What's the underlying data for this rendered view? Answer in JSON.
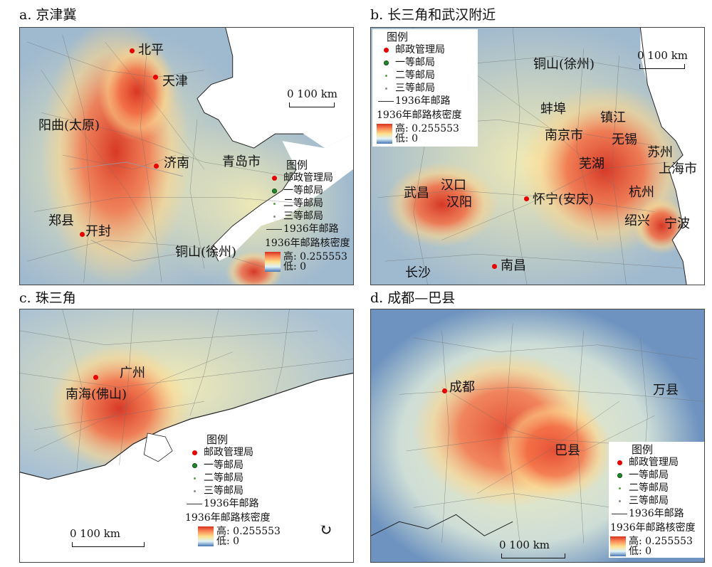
{
  "panels": {
    "a": {
      "title": "a. 京津冀",
      "cities": {
        "beiping": "北平",
        "tianjin": "天津",
        "yangqu": "阳曲(太原)",
        "jinan": "济南",
        "qingdao": "青岛市",
        "zhengxian": "郑县",
        "kaifeng": "开封",
        "tongshan": "铜山(徐州)"
      },
      "scale": "0  100 km"
    },
    "b": {
      "title": "b. 长三角和武汉附近",
      "cities": {
        "tongshan": "铜山(徐州)",
        "bengbu": "蚌埠",
        "zhenjiang": "镇江",
        "nanjing": "南京市",
        "wuxi": "无锡",
        "suzhou": "苏州",
        "wuhu": "芜湖",
        "shanghai": "上海市",
        "hangzhou": "杭州",
        "shaoxing": "绍兴",
        "ningbo": "宁波",
        "wuchang": "武昌",
        "hankou": "汉口",
        "hanyang": "汉阳",
        "huaining": "怀宁(安庆)",
        "changsha": "长沙",
        "nanchang": "南昌"
      },
      "scale": "0  100 km"
    },
    "c": {
      "title": "c. 珠三角",
      "cities": {
        "guangzhou": "广州",
        "nanhai": "南海(佛山)"
      },
      "scale": "0      100 km"
    },
    "d": {
      "title": "d. 成都—巴县",
      "cities": {
        "chengdu": "成都",
        "baxian": "巴县",
        "wanxian": "万县"
      },
      "scale": "0      100 km"
    }
  },
  "legend": {
    "title": "图例",
    "items": [
      "邮政管理局",
      "一等邮局",
      "二等邮局",
      "三等邮局",
      "1936年邮路"
    ],
    "density_title": "1936年邮路核密度",
    "high": "高: 0.255553",
    "low": "低: 0"
  },
  "colors": {
    "admin_dot": "#e60000",
    "first_class": "#1f8a2a",
    "second_class": "#5aa04a",
    "third_class": "#8a8a8a",
    "density_high": "#d7301f",
    "density_mid": "#fee08b",
    "density_low": "#4575b4"
  }
}
